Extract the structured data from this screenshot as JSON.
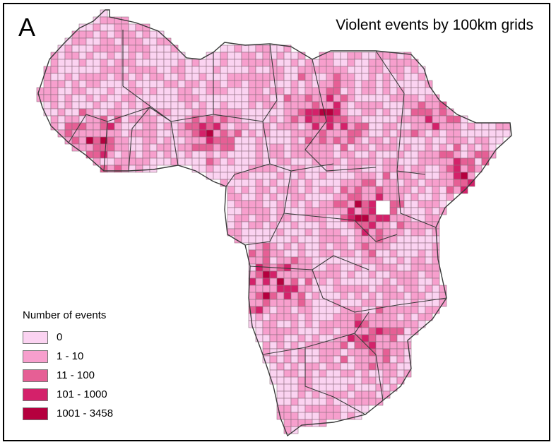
{
  "panel_label": "A",
  "title": "Violent events by 100km grids",
  "legend": {
    "title": "Number of events",
    "classes": [
      {
        "label": "0",
        "color": "#fbd3f1"
      },
      {
        "label": "1 - 10",
        "color": "#f79fcd"
      },
      {
        "label": "11 - 100",
        "color": "#e65f95"
      },
      {
        "label": "101 - 1000",
        "color": "#d4216a"
      },
      {
        "label": "1001 - 3458",
        "color": "#b5003e"
      }
    ]
  },
  "colors": {
    "grid_line": "#8f6f80",
    "border_line": "#3a3a3a",
    "background": "#ffffff"
  }
}
